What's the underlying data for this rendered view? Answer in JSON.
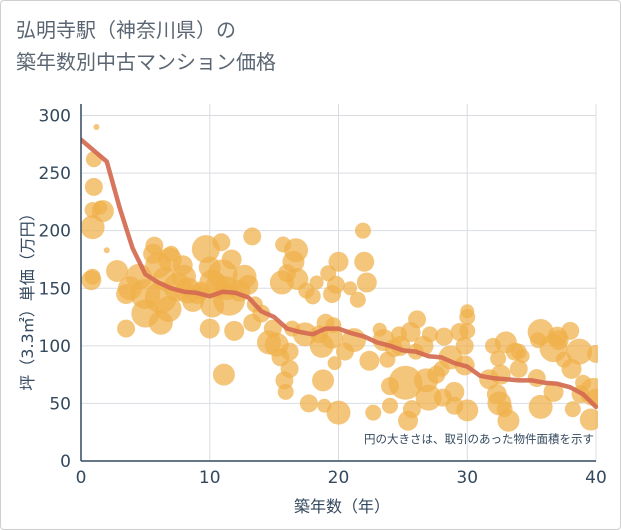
{
  "title_lines": [
    "弘明寺駅（神奈川県）の",
    "築年数別中古マンション価格"
  ],
  "chart_data": {
    "type": "scatter",
    "title": "弘明寺駅（神奈川県）の築年数別中古マンション価格",
    "xlabel": "築年数（年）",
    "ylabel": "坪（3.3㎡）単価（万円）",
    "xlim": [
      0,
      40
    ],
    "ylim": [
      0,
      310
    ],
    "xticks": [
      0,
      10,
      20,
      30,
      40
    ],
    "yticks": [
      0,
      50,
      100,
      150,
      200,
      250,
      300
    ],
    "grid": true,
    "note": "円の大きさは、取引のあった物件面積を示す",
    "bubble_color": "#f0b04a",
    "trend_color": "#d46a50",
    "bubbles": [
      [
        0.8,
        157,
        10
      ],
      [
        0.9,
        160,
        8
      ],
      [
        0.9,
        203,
        12
      ],
      [
        0.9,
        218,
        8
      ],
      [
        1.0,
        238,
        9
      ],
      [
        1.0,
        262,
        8
      ],
      [
        1.2,
        290,
        3
      ],
      [
        1.5,
        220,
        7
      ],
      [
        2.0,
        183,
        3
      ],
      [
        1.7,
        217,
        11
      ],
      [
        2.8,
        165,
        11
      ],
      [
        3.5,
        145,
        10
      ],
      [
        3.5,
        115,
        9
      ],
      [
        3.8,
        150,
        12
      ],
      [
        4.5,
        160,
        13
      ],
      [
        5,
        145,
        15
      ],
      [
        5,
        128,
        14
      ],
      [
        5.6,
        180,
        10
      ],
      [
        5.7,
        187,
        9
      ],
      [
        6,
        170,
        13
      ],
      [
        6.2,
        142,
        16
      ],
      [
        6.2,
        120,
        12
      ],
      [
        6.5,
        158,
        12
      ],
      [
        6.8,
        132,
        13
      ],
      [
        6.9,
        175,
        12
      ],
      [
        7.0,
        180,
        8
      ],
      [
        7.5,
        151,
        14
      ],
      [
        7.9,
        170,
        10
      ],
      [
        8.0,
        160,
        12
      ],
      [
        8.3,
        148,
        13
      ],
      [
        8.7,
        139,
        11
      ],
      [
        9.0,
        145,
        10
      ],
      [
        9.3,
        148,
        9
      ],
      [
        9.7,
        184,
        14
      ],
      [
        10.0,
        115,
        10
      ],
      [
        10.0,
        168,
        11
      ],
      [
        10.2,
        155,
        13
      ],
      [
        10.2,
        135,
        12
      ],
      [
        10.6,
        152,
        12
      ],
      [
        10.9,
        190,
        9
      ],
      [
        11.1,
        75,
        11
      ],
      [
        11.0,
        162,
        15
      ],
      [
        11.3,
        150,
        12
      ],
      [
        11.5,
        140,
        16
      ],
      [
        11.7,
        175,
        10
      ],
      [
        11.9,
        113,
        10
      ],
      [
        12.3,
        148,
        11
      ],
      [
        12.7,
        160,
        12
      ],
      [
        13.0,
        153,
        10
      ],
      [
        13.3,
        195,
        9
      ],
      [
        13.3,
        120,
        9
      ],
      [
        13.5,
        136,
        8
      ],
      [
        14.0,
        128,
        9
      ],
      [
        14.6,
        103,
        12
      ],
      [
        14.9,
        115,
        9
      ],
      [
        15.2,
        101,
        12
      ],
      [
        15.5,
        90,
        9
      ],
      [
        15.6,
        155,
        12
      ],
      [
        15.7,
        188,
        8
      ],
      [
        15.8,
        70,
        9
      ],
      [
        15.9,
        60,
        8
      ],
      [
        16.0,
        163,
        9
      ],
      [
        16.2,
        95,
        9
      ],
      [
        16.2,
        80,
        9
      ],
      [
        16.4,
        115,
        8
      ],
      [
        16.5,
        173,
        11
      ],
      [
        16.7,
        183,
        12
      ],
      [
        16.8,
        158,
        11
      ],
      [
        17.4,
        110,
        12
      ],
      [
        17.5,
        148,
        8
      ],
      [
        17.7,
        50,
        9
      ],
      [
        18.0,
        143,
        8
      ],
      [
        18.3,
        155,
        7
      ],
      [
        18.5,
        110,
        9
      ],
      [
        18.7,
        100,
        12
      ],
      [
        18.8,
        70,
        11
      ],
      [
        18.9,
        48,
        7
      ],
      [
        19.0,
        120,
        9
      ],
      [
        19.2,
        163,
        8
      ],
      [
        19.5,
        107,
        11
      ],
      [
        19.5,
        145,
        9
      ],
      [
        19.6,
        118,
        8
      ],
      [
        19.7,
        85,
        7
      ],
      [
        19.8,
        153,
        9
      ],
      [
        20.0,
        42,
        12
      ],
      [
        20.0,
        173,
        10
      ],
      [
        20.5,
        95,
        9
      ],
      [
        20.9,
        150,
        7
      ],
      [
        21.2,
        105,
        12
      ],
      [
        21.5,
        140,
        8
      ],
      [
        21.9,
        200,
        8
      ],
      [
        22.0,
        173,
        10
      ],
      [
        22.2,
        155,
        10
      ],
      [
        22.4,
        87,
        10
      ],
      [
        22.7,
        42,
        8
      ],
      [
        23.2,
        114,
        7
      ],
      [
        23.5,
        105,
        11
      ],
      [
        23.8,
        88,
        8
      ],
      [
        24.0,
        65,
        9
      ],
      [
        24.0,
        48,
        8
      ],
      [
        24.3,
        98,
        9
      ],
      [
        24.7,
        110,
        8
      ],
      [
        24.8,
        100,
        10
      ],
      [
        25.2,
        68,
        17
      ],
      [
        25.4,
        35,
        10
      ],
      [
        25.6,
        112,
        10
      ],
      [
        25.7,
        45,
        9
      ],
      [
        26.0,
        95,
        8
      ],
      [
        26.1,
        123,
        9
      ],
      [
        26.6,
        100,
        10
      ],
      [
        26.8,
        70,
        12
      ],
      [
        27.0,
        55,
        13
      ],
      [
        27.1,
        110,
        8
      ],
      [
        27.6,
        75,
        9
      ],
      [
        28.0,
        80,
        8
      ],
      [
        28.1,
        55,
        9
      ],
      [
        28.2,
        108,
        9
      ],
      [
        28.7,
        90,
        12
      ],
      [
        29.0,
        60,
        10
      ],
      [
        29.0,
        48,
        9
      ],
      [
        29.4,
        112,
        9
      ],
      [
        29.8,
        100,
        9
      ],
      [
        29.8,
        83,
        10
      ],
      [
        30.0,
        113,
        8
      ],
      [
        30.0,
        125,
        8
      ],
      [
        30.0,
        130,
        7
      ],
      [
        30.0,
        44,
        11
      ],
      [
        31.7,
        71,
        10
      ],
      [
        32.0,
        100,
        8
      ],
      [
        32.3,
        58,
        10
      ],
      [
        32.4,
        89,
        8
      ],
      [
        32.5,
        50,
        12
      ],
      [
        32.6,
        75,
        10
      ],
      [
        32.9,
        45,
        8
      ],
      [
        33.0,
        103,
        11
      ],
      [
        33.2,
        35,
        11
      ],
      [
        33.7,
        95,
        9
      ],
      [
        34.0,
        95,
        8
      ],
      [
        34.0,
        80,
        9
      ],
      [
        34.3,
        91,
        7
      ],
      [
        35.4,
        72,
        9
      ],
      [
        35.5,
        105,
        8
      ],
      [
        35.7,
        47,
        12
      ],
      [
        35.7,
        112,
        13
      ],
      [
        36.7,
        98,
        14
      ],
      [
        36.7,
        60,
        10
      ],
      [
        37.0,
        108,
        10
      ],
      [
        37.1,
        105,
        10
      ],
      [
        37.5,
        88,
        8
      ],
      [
        38.0,
        113,
        9
      ],
      [
        38.1,
        80,
        10
      ],
      [
        38.2,
        45,
        8
      ],
      [
        38.7,
        95,
        13
      ],
      [
        38.8,
        58,
        9
      ],
      [
        39.0,
        68,
        8
      ],
      [
        39.6,
        36,
        11
      ],
      [
        39.8,
        60,
        14
      ],
      [
        40.0,
        93,
        9
      ],
      [
        40.0,
        55,
        9
      ]
    ],
    "trend": [
      [
        0,
        279
      ],
      [
        2,
        260
      ],
      [
        3,
        220
      ],
      [
        4,
        185
      ],
      [
        5,
        162
      ],
      [
        6,
        155
      ],
      [
        7,
        150
      ],
      [
        8,
        147
      ],
      [
        9,
        146
      ],
      [
        10,
        143
      ],
      [
        11,
        147
      ],
      [
        12,
        146
      ],
      [
        13,
        142
      ],
      [
        14,
        130
      ],
      [
        15,
        125
      ],
      [
        16,
        115
      ],
      [
        17,
        112
      ],
      [
        18,
        110
      ],
      [
        19,
        115
      ],
      [
        20,
        115
      ],
      [
        21,
        111
      ],
      [
        22,
        108
      ],
      [
        23,
        103
      ],
      [
        24,
        100
      ],
      [
        25,
        96
      ],
      [
        26,
        95
      ],
      [
        27,
        91
      ],
      [
        28,
        90
      ],
      [
        29,
        85
      ],
      [
        30,
        82
      ],
      [
        31,
        74
      ],
      [
        32,
        72
      ],
      [
        33,
        71
      ],
      [
        34,
        70
      ],
      [
        35,
        70
      ],
      [
        36,
        68
      ],
      [
        37,
        67
      ],
      [
        38,
        64
      ],
      [
        39,
        58
      ],
      [
        40,
        47
      ]
    ]
  }
}
